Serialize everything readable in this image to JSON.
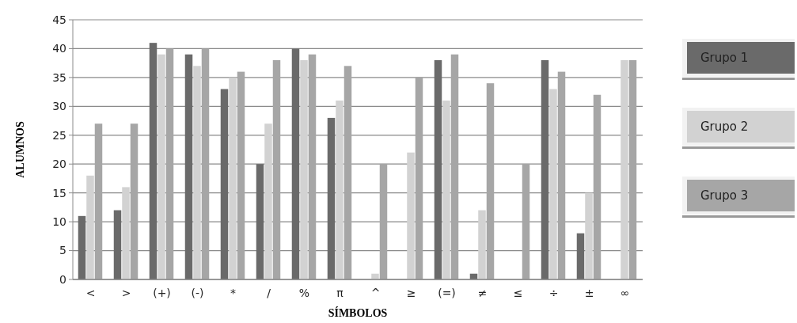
{
  "chart_data": {
    "type": "bar",
    "xlabel": "SÍMBOLOS",
    "ylabel": "ALUMNOS",
    "categories": [
      "<",
      ">",
      "(+)",
      "(-)",
      "*",
      "/",
      "%",
      "π",
      "^",
      "≥",
      "(=)",
      "≠",
      "≤",
      "÷",
      "±",
      "∞"
    ],
    "series": [
      {
        "name": "Grupo 1",
        "color": "#6a6a6a",
        "values": [
          11,
          12,
          41,
          39,
          33,
          20,
          40,
          28,
          0,
          0,
          38,
          1,
          0,
          38,
          8,
          0
        ]
      },
      {
        "name": "Grupo 2",
        "color": "#d2d2d2",
        "values": [
          18,
          16,
          39,
          37,
          35,
          27,
          38,
          31,
          1,
          22,
          31,
          12,
          0,
          33,
          15,
          38
        ]
      },
      {
        "name": "Grupo 3",
        "color": "#a6a6a6",
        "values": [
          27,
          27,
          40,
          40,
          36,
          38,
          39,
          37,
          20,
          35,
          39,
          34,
          20,
          36,
          32,
          38
        ]
      }
    ],
    "ylim": [
      0,
      45
    ],
    "yticks": [
      0,
      5,
      10,
      15,
      20,
      25,
      30,
      35,
      40,
      45
    ],
    "grid": "y",
    "legend": "right"
  }
}
